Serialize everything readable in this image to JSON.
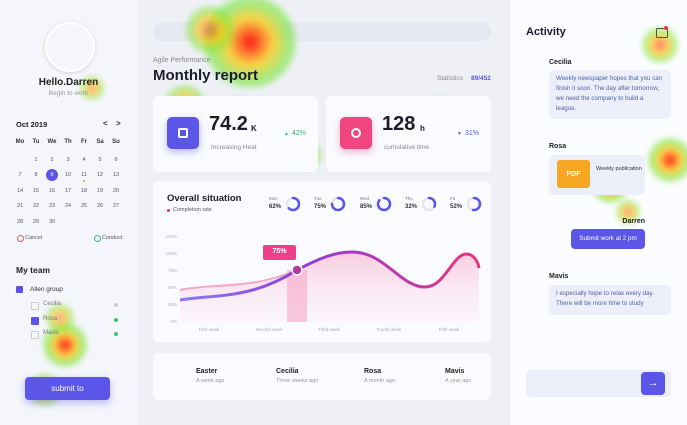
{
  "sidebar": {
    "greeting": "Hello.Darren",
    "subtitle": "Begin to work",
    "calendar": {
      "month": "Oct 2019",
      "prev": "<",
      "next": ">",
      "weekdays": [
        "Mo",
        "Tu",
        "We",
        "Th",
        "Fr",
        "Sa",
        "Su"
      ],
      "weeks": [
        [
          null,
          1,
          2,
          3,
          4,
          5,
          6
        ],
        [
          7,
          8,
          9,
          10,
          11,
          12,
          13
        ],
        [
          14,
          15,
          16,
          17,
          18,
          19,
          20
        ],
        [
          21,
          22,
          23,
          24,
          25,
          26,
          27
        ],
        [
          28,
          29,
          30
        ]
      ],
      "cancel": "Cancel",
      "conduct": "Conduct"
    },
    "team": {
      "title": "My team",
      "group": "Allen group",
      "members": [
        "Cecilia",
        "Rosa",
        "Mavis"
      ]
    },
    "button": "submit to"
  },
  "header": {
    "kicker": "Agile Performance",
    "title": "Monthly report",
    "stats_label": "Statistics",
    "stats_value": "89/452"
  },
  "cards": [
    {
      "value": "74.2",
      "unit": "K",
      "label": "Increasing Heat",
      "change": "42%"
    },
    {
      "value": "128",
      "unit": "h",
      "label": "cumulative time",
      "change": "31%"
    }
  ],
  "overview": {
    "title": "Overall situation",
    "legend": "Completion rate",
    "days": [
      {
        "day": "Mon",
        "value": "62%"
      },
      {
        "day": "Tue",
        "value": "75%"
      },
      {
        "day": "Wed",
        "value": "85%"
      },
      {
        "day": "Thu",
        "value": "32%"
      },
      {
        "day": "Fri",
        "value": "52%"
      }
    ],
    "y_labels": [
      "120%",
      "100%",
      "75%",
      "50%",
      "25%",
      "0%"
    ],
    "x_labels": [
      "First week",
      "Second week",
      "Third week",
      "Fourth week",
      "Fifth week"
    ],
    "callout": "75%"
  },
  "people": [
    {
      "name": "Easter",
      "time": "A week ago"
    },
    {
      "name": "Cecilia",
      "time": "Three weeks ago"
    },
    {
      "name": "Rosa",
      "time": "A month ago"
    },
    {
      "name": "Mavis",
      "time": "A year ago"
    }
  ],
  "activity": {
    "title": "Activity",
    "messages": [
      {
        "sender": "Cecilia",
        "text": "Weekly newspaper hopes that you can finish it soon. The day after tomorrow, we need the company to build a league."
      },
      {
        "sender": "Rosa",
        "file": "PDF",
        "file_name": "Weekly publication"
      },
      {
        "sender": "Darren",
        "text": "Submit work at 2 pm"
      },
      {
        "sender": "Mavis",
        "text": "I especially hope to relax every day. There will be more time to study"
      }
    ]
  }
}
